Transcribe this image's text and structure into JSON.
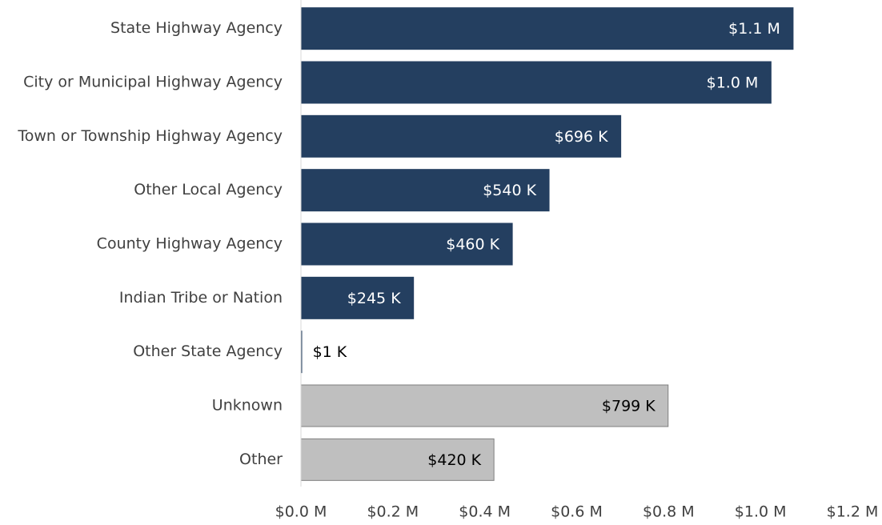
{
  "chart_data": {
    "type": "hbar",
    "categories": [
      "State Highway Agency",
      "City or Municipal Highway Agency",
      "Town or Township Highway Agency",
      "Other Local Agency",
      "County Highway Agency",
      "Indian Tribe or Nation",
      "Other State Agency",
      "Unknown",
      "Other"
    ],
    "values": [
      1.071,
      1.023,
      0.696,
      0.54,
      0.46,
      0.245,
      0.001,
      0.799,
      0.42
    ],
    "value_labels": [
      "$1.1 M",
      "$1.0 M",
      "$696 K",
      "$540 K",
      "$460 K",
      "$245 K",
      "$1 K",
      "$799 K",
      "$420 K"
    ],
    "colors": [
      "#243f60",
      "#243f60",
      "#243f60",
      "#243f60",
      "#243f60",
      "#243f60",
      "#243f60",
      "#bfbfbf",
      "#bfbfbf"
    ],
    "xlim": [
      0,
      1.2
    ],
    "xticks": [
      {
        "value": 0,
        "label": "$0.0 M"
      },
      {
        "value": 0.2,
        "label": "$0.2 M"
      },
      {
        "value": 0.4,
        "label": "$0.4 M"
      },
      {
        "value": 0.6,
        "label": "$0.6 M"
      },
      {
        "value": 0.8,
        "label": "$0.8 M"
      },
      {
        "value": 1.0,
        "label": "$1.0 M"
      },
      {
        "value": 1.2,
        "label": "$1.2 M"
      }
    ],
    "grid": false
  }
}
